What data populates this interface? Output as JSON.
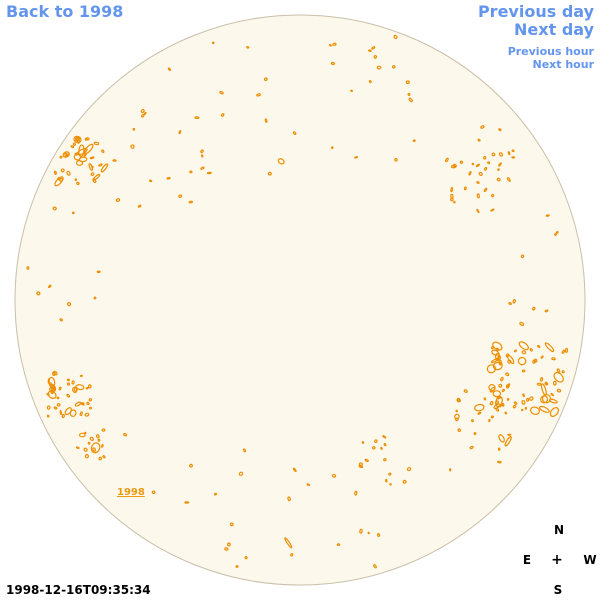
{
  "nav": {
    "back": "Back to 1998",
    "previous_day": "Previous day",
    "next_day": "Next day",
    "previous_hour": "Previous hour",
    "next_hour": "Next hour"
  },
  "compass": {
    "north": "N",
    "east": "E",
    "center": "+",
    "west": "W",
    "south": "S"
  },
  "timestamp": "1998-12-16T09:35:34",
  "year_label": "1998",
  "colors": {
    "disk_fill": "#fdf8ec",
    "disk_stroke": "#c9bfa9",
    "contour": "#ee8e00",
    "link": "#6495ed"
  }
}
